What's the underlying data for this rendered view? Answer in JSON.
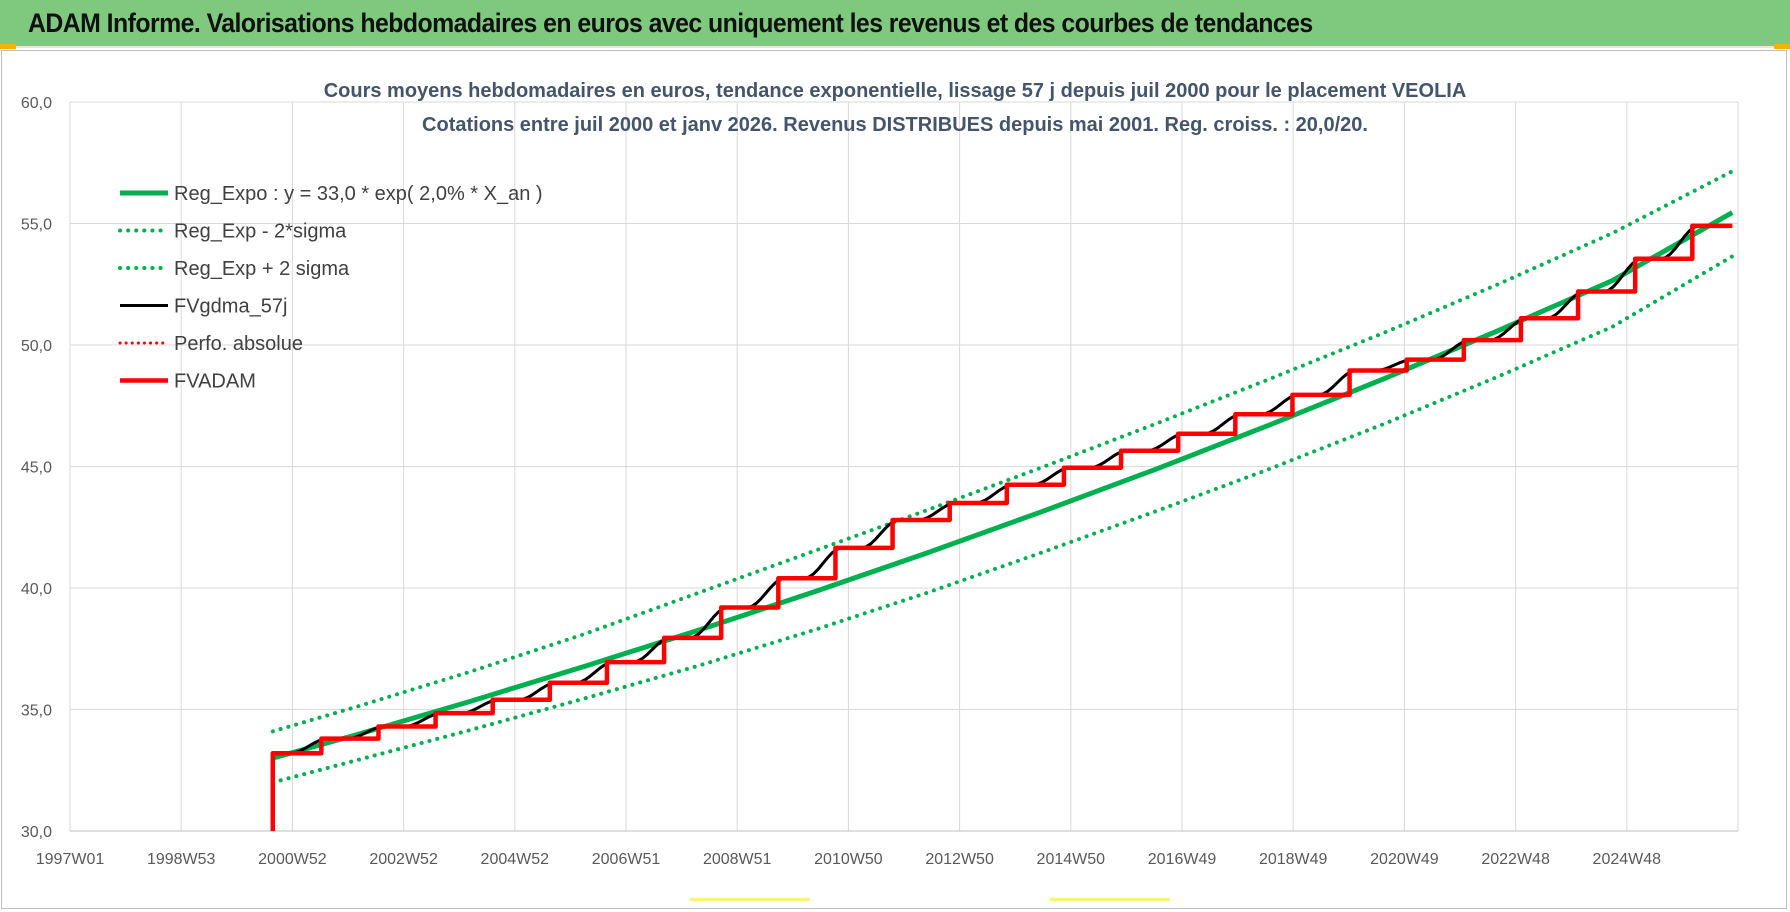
{
  "header": {
    "title": "ADAM Informe. Valorisations hebdomadaires en euros avec uniquement les revenus et des courbes de tendances"
  },
  "colors": {
    "banner": "#7fc97f",
    "trend_green": "#00b050",
    "price_black": "#000000",
    "adam_red": "#ff0000",
    "grid": "#d9d9d9"
  },
  "chart_data": {
    "type": "line",
    "title": "Cours moyens hebdomadaires en euros, tendance exponentielle, lissage 57 j depuis juil 2000 pour le placement VEOLIA",
    "subtitle": "Cotations entre juil 2000 et janv 2026. Revenus DISTRIBUES depuis mai 2001. Reg. croiss. : 20,0/20.",
    "x_tick_labels": [
      "1997W01",
      "1998W53",
      "2000W52",
      "2002W52",
      "2004W52",
      "2006W51",
      "2008W51",
      "2010W50",
      "2012W50",
      "2014W50",
      "2016W49",
      "2018W49",
      "2020W49",
      "2022W48",
      "2024W48"
    ],
    "xlim": [
      1997.0,
      2026.2
    ],
    "ylim": [
      30.0,
      60.0
    ],
    "y_ticks": [
      "30,0",
      "35,0",
      "40,0",
      "45,0",
      "50,0",
      "55,0",
      "60,0"
    ],
    "grid": true,
    "legend_position": "top-left",
    "series": [
      {
        "name": "Reg_Expo : y = 33,0 * exp( 2,0% *  X_an )",
        "style": "solid",
        "x": [
          2000.55,
          2002.0,
          2004.0,
          2006.0,
          2008.0,
          2010.0,
          2012.0,
          2014.0,
          2016.0,
          2018.0,
          2020.0,
          2022.0,
          2024.0,
          2026.1
        ],
        "values": [
          33.0,
          33.95,
          35.33,
          36.77,
          38.26,
          39.82,
          41.44,
          43.13,
          44.88,
          46.71,
          48.61,
          50.59,
          52.65,
          55.45
        ]
      },
      {
        "name": "Reg_Exp - 2*sigma",
        "style": "dotted",
        "x": [
          2000.55,
          2002.0,
          2004.0,
          2006.0,
          2008.0,
          2010.0,
          2012.0,
          2014.0,
          2016.0,
          2018.0,
          2020.0,
          2022.0,
          2024.0,
          2026.1
        ],
        "values": [
          32.0,
          32.9,
          34.15,
          35.45,
          36.8,
          38.25,
          39.8,
          41.45,
          43.15,
          44.9,
          46.75,
          48.7,
          50.75,
          53.65
        ]
      },
      {
        "name": "Reg_Exp + 2 sigma",
        "style": "dotted",
        "x": [
          2000.55,
          2002.0,
          2004.0,
          2006.0,
          2008.0,
          2010.0,
          2012.0,
          2014.0,
          2016.0,
          2018.0,
          2020.0,
          2022.0,
          2024.0,
          2026.1
        ],
        "values": [
          34.1,
          35.1,
          36.55,
          38.1,
          39.8,
          41.5,
          43.2,
          44.95,
          46.75,
          48.6,
          50.5,
          52.5,
          54.6,
          57.15
        ]
      },
      {
        "name": "FVgdma_57j",
        "style": "solid",
        "x": [
          2000.55,
          2026.1
        ],
        "values": [
          33.2,
          54.9
        ]
      },
      {
        "name": "Perfo. absolue",
        "style": "dotted",
        "x": [],
        "values": []
      },
      {
        "name": "FVADAM",
        "style": "steps",
        "x": [
          2000.55,
          2000.55,
          2001.4,
          2001.4,
          2002.4,
          2002.4,
          2003.4,
          2003.4,
          2004.4,
          2004.4,
          2005.4,
          2005.4,
          2006.4,
          2006.4,
          2007.4,
          2007.4,
          2008.4,
          2008.4,
          2009.4,
          2009.4,
          2010.4,
          2010.4,
          2011.4,
          2011.4,
          2012.4,
          2012.4,
          2013.4,
          2013.4,
          2014.4,
          2014.4,
          2015.4,
          2015.4,
          2016.4,
          2016.4,
          2017.4,
          2017.4,
          2018.4,
          2018.4,
          2019.4,
          2019.4,
          2020.4,
          2020.4,
          2021.4,
          2021.4,
          2022.4,
          2022.4,
          2023.4,
          2023.4,
          2024.4,
          2024.4,
          2025.4,
          2025.4,
          2026.1
        ],
        "values": [
          30.0,
          33.2,
          33.2,
          33.8,
          33.8,
          34.3,
          34.3,
          34.85,
          34.85,
          35.4,
          35.4,
          36.1,
          36.1,
          36.95,
          36.95,
          37.95,
          37.95,
          39.2,
          39.2,
          40.4,
          40.4,
          41.65,
          41.65,
          42.8,
          42.8,
          43.5,
          43.5,
          44.25,
          44.25,
          44.95,
          44.95,
          45.65,
          45.65,
          46.35,
          46.35,
          47.15,
          47.15,
          47.95,
          47.95,
          48.95,
          48.95,
          49.4,
          49.4,
          50.2,
          50.2,
          51.1,
          51.1,
          52.2,
          52.2,
          53.55,
          53.55,
          54.9,
          54.9
        ]
      }
    ]
  }
}
